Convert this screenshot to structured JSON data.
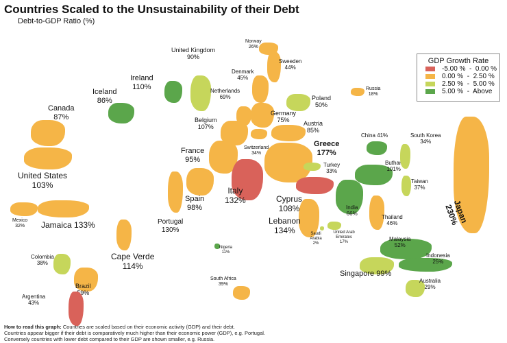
{
  "title": "Countries Scaled to the Unsustainability of their Debt",
  "subtitle": "Debt-to-GDP Ratio (%)",
  "colors": {
    "neg": "#d9625a",
    "low": "#f5b547",
    "mid": "#c6d65b",
    "high": "#5ba64b"
  },
  "legend": {
    "title": "GDP Growth Rate",
    "items": [
      {
        "label": "-5.00 %  -  0.00 %",
        "cat": "neg"
      },
      {
        "label": "0.00 %  -  2.50 %",
        "cat": "low"
      },
      {
        "label": "2.50 %  -  5.00 %",
        "cat": "mid"
      },
      {
        "label": "5.00 %  -  Above",
        "cat": "high"
      }
    ]
  },
  "countries": [
    {
      "name": "Canada",
      "debt": "87%",
      "cat": "low"
    },
    {
      "name": "United States",
      "debt": "103%",
      "cat": "low"
    },
    {
      "name": "Mexico",
      "debt": "32%",
      "cat": "low"
    },
    {
      "name": "Jamaica",
      "debt": "133%",
      "cat": "low"
    },
    {
      "name": "Colombia",
      "debt": "38%",
      "cat": "mid"
    },
    {
      "name": "Brazil",
      "debt": "59%",
      "cat": "low"
    },
    {
      "name": "Argentina",
      "debt": "43%",
      "cat": "neg"
    },
    {
      "name": "Iceland",
      "debt": "86%",
      "cat": "high"
    },
    {
      "name": "Ireland",
      "debt": "110%",
      "cat": "high"
    },
    {
      "name": "United Kingdom",
      "debt": "90%",
      "cat": "mid"
    },
    {
      "name": "Netherlands",
      "debt": "69%",
      "cat": "low"
    },
    {
      "name": "Belgium",
      "debt": "107%",
      "cat": "low"
    },
    {
      "name": "France",
      "debt": "95%",
      "cat": "low"
    },
    {
      "name": "Portugal",
      "debt": "130%",
      "cat": "low"
    },
    {
      "name": "Spain",
      "debt": "98%",
      "cat": "low"
    },
    {
      "name": "Cape Verde",
      "debt": "114%",
      "cat": "low"
    },
    {
      "name": "Italy",
      "debt": "132%",
      "cat": "neg"
    },
    {
      "name": "Switzerland",
      "debt": "34%",
      "cat": "low"
    },
    {
      "name": "Germany",
      "debt": "75%",
      "cat": "low"
    },
    {
      "name": "Denmark",
      "debt": "45%",
      "cat": "low"
    },
    {
      "name": "Norway",
      "debt": "26%",
      "cat": "low"
    },
    {
      "name": "Sweeden",
      "debt": "44%",
      "cat": "low"
    },
    {
      "name": "Poland",
      "debt": "50%",
      "cat": "mid"
    },
    {
      "name": "Russia",
      "debt": "18%",
      "cat": "low"
    },
    {
      "name": "Austria",
      "debt": "85%",
      "cat": "low"
    },
    {
      "name": "Greece",
      "debt": "177%",
      "cat": "low"
    },
    {
      "name": "Turkey",
      "debt": "33%",
      "cat": "mid"
    },
    {
      "name": "Cyprus",
      "debt": "108%",
      "cat": "neg"
    },
    {
      "name": "Lebanon",
      "debt": "134%",
      "cat": "low"
    },
    {
      "name": "Saudi Arabia",
      "debt": "2%",
      "cat": "mid"
    },
    {
      "name": "United Arab Emirates",
      "debt": "17%",
      "cat": "mid"
    },
    {
      "name": "Nigeria",
      "debt": "11%",
      "cat": "high"
    },
    {
      "name": "South Africa",
      "debt": "39%",
      "cat": "low"
    },
    {
      "name": "China",
      "debt": "41%",
      "cat": "high"
    },
    {
      "name": "Buthan",
      "debt": "101%",
      "cat": "high"
    },
    {
      "name": "India",
      "debt": "66%",
      "cat": "high"
    },
    {
      "name": "Thailand",
      "debt": "46%",
      "cat": "low"
    },
    {
      "name": "South Korea",
      "debt": "34%",
      "cat": "mid"
    },
    {
      "name": "Taiwan",
      "debt": "37%",
      "cat": "mid"
    },
    {
      "name": "Japan",
      "debt": "230%",
      "cat": "low"
    },
    {
      "name": "Malaysia",
      "debt": "52%",
      "cat": "high"
    },
    {
      "name": "Indonesia",
      "debt": "25%",
      "cat": "high"
    },
    {
      "name": "Singapore",
      "debt": "99%",
      "cat": "mid"
    },
    {
      "name": "Australia",
      "debt": "29%",
      "cat": "mid"
    }
  ],
  "note": {
    "bold": "How to read this graph:",
    "line1": " Countries are scaled based on their economic activity (GDP) and their debt.",
    "line2": "Countries appear bigger if their debt is comparatively much higher than their economic power (GDP), e.g. Portugal.",
    "line3": "Conversely countries with lower debt compared to their GDP are shown smaller, e.g. Russia."
  }
}
